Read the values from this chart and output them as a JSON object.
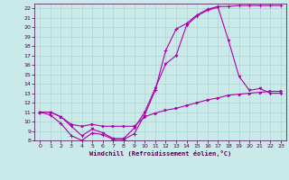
{
  "xlabel": "Windchill (Refroidissement éolien,°C)",
  "bg_color": "#caeaea",
  "line_color": "#aa00aa",
  "grid_color": "#aadddd",
  "xlim": [
    -0.5,
    23.5
  ],
  "ylim": [
    8,
    22.5
  ],
  "xticks": [
    0,
    1,
    2,
    3,
    4,
    5,
    6,
    7,
    8,
    9,
    10,
    11,
    12,
    13,
    14,
    15,
    16,
    17,
    18,
    19,
    20,
    21,
    22,
    23
  ],
  "yticks": [
    8,
    9,
    10,
    11,
    12,
    13,
    14,
    15,
    16,
    17,
    18,
    19,
    20,
    21,
    22
  ],
  "line1_x": [
    0,
    1,
    2,
    3,
    4,
    5,
    6,
    7,
    8,
    9,
    10,
    11,
    12,
    13,
    14,
    15,
    16,
    17,
    18,
    19,
    20,
    21,
    22,
    23
  ],
  "line1_y": [
    11,
    10.7,
    9.8,
    8.5,
    8.0,
    8.8,
    8.6,
    8.1,
    8.1,
    8.7,
    10.7,
    13.3,
    17.5,
    19.8,
    20.4,
    21.3,
    21.9,
    22.2,
    22.2,
    22.3,
    22.3,
    22.3,
    22.3,
    22.3
  ],
  "line2_x": [
    0,
    1,
    2,
    3,
    4,
    5,
    6,
    7,
    8,
    9,
    10,
    11,
    12,
    13,
    14,
    15,
    16,
    17,
    18,
    19,
    20,
    21,
    22,
    23
  ],
  "line2_y": [
    11,
    11,
    10.5,
    9.5,
    8.5,
    9.2,
    8.8,
    8.2,
    8.2,
    9.3,
    11,
    13.5,
    16.1,
    17,
    20.2,
    21.2,
    21.8,
    22.1,
    18.6,
    14.8,
    13.3,
    13.5,
    13.0,
    13.0
  ],
  "line3_x": [
    0,
    1,
    2,
    3,
    4,
    5,
    6,
    7,
    8,
    9,
    10,
    11,
    12,
    13,
    14,
    15,
    16,
    17,
    18,
    19,
    20,
    21,
    22,
    23
  ],
  "line3_y": [
    11,
    11,
    10.5,
    9.7,
    9.5,
    9.7,
    9.5,
    9.5,
    9.5,
    9.5,
    10.5,
    10.9,
    11.2,
    11.4,
    11.7,
    12.0,
    12.3,
    12.5,
    12.8,
    12.9,
    13.0,
    13.1,
    13.2,
    13.2
  ]
}
